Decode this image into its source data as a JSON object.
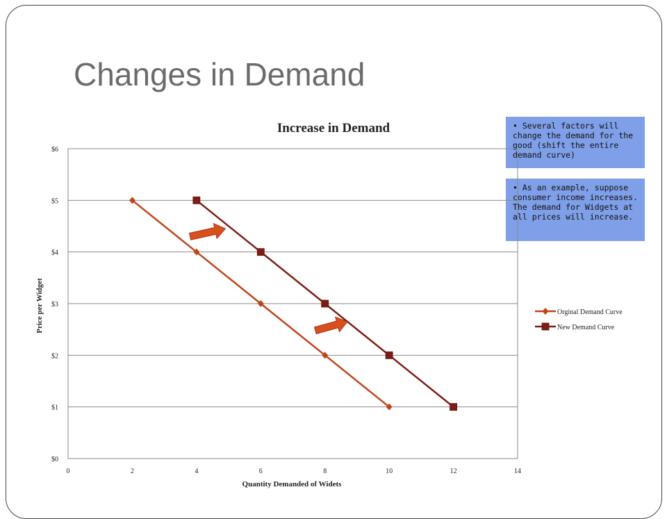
{
  "slide": {
    "title": "Changes in Demand"
  },
  "callouts": [
    {
      "bullet": "•",
      "text": "Several factors will change the demand for the good (shift the entire demand curve)"
    },
    {
      "bullet": "•",
      "text": "As an example, suppose consumer income increases. The demand for Widgets at all prices will increase."
    }
  ],
  "chart_data": {
    "type": "line",
    "title": "Increase in Demand",
    "xlabel": "Quantity Demanded  of Widets",
    "ylabel": "Price per Widget",
    "xlim": [
      0,
      14
    ],
    "ylim": [
      0,
      6
    ],
    "x_ticks": [
      "0",
      "2",
      "4",
      "6",
      "8",
      "10",
      "12",
      "14"
    ],
    "y_ticks": [
      "$0",
      "$1",
      "$2",
      "$3",
      "$4",
      "$5",
      "$6"
    ],
    "grid": "horizontal",
    "legend": "right",
    "series": [
      {
        "name": "Orginal Demand Curve",
        "marker": "diamond",
        "color": "#c0441b",
        "points": [
          [
            2,
            5
          ],
          [
            4,
            4
          ],
          [
            6,
            3
          ],
          [
            8,
            2
          ],
          [
            10,
            1
          ]
        ]
      },
      {
        "name": "New Demand Curve",
        "marker": "square",
        "color": "#7d1c14",
        "points": [
          [
            4,
            5
          ],
          [
            6,
            4
          ],
          [
            8,
            3
          ],
          [
            10,
            2
          ],
          [
            12,
            1
          ]
        ]
      }
    ],
    "annotations": [
      {
        "type": "shift-arrow",
        "from": [
          3.8,
          4.3
        ],
        "to": [
          4.9,
          4.45
        ],
        "color": "#d94f1e"
      },
      {
        "type": "shift-arrow",
        "from": [
          7.7,
          2.48
        ],
        "to": [
          8.7,
          2.65
        ],
        "color": "#d94f1e"
      }
    ]
  }
}
